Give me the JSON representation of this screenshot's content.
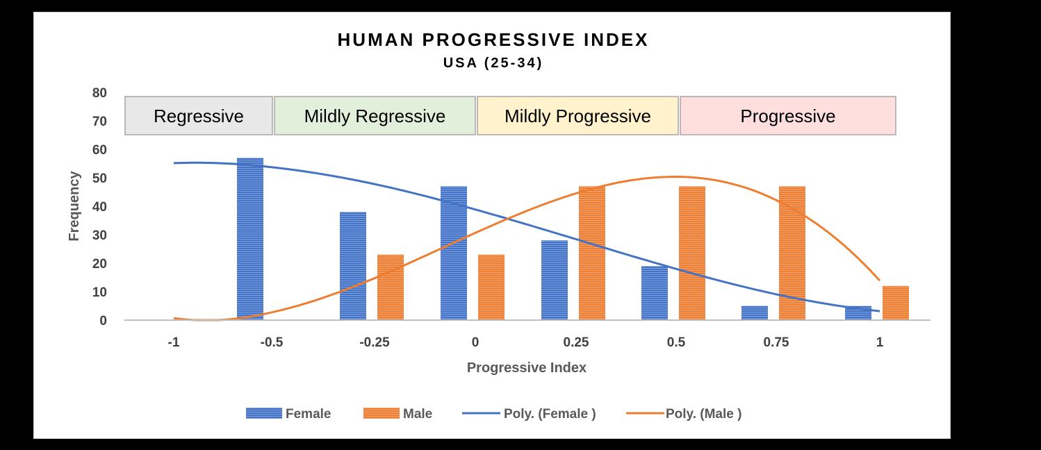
{
  "colors": {
    "female": "#4472C4",
    "male": "#ED7D31",
    "axis": "#BFBFBF",
    "region_borders": "#A6A6A6"
  },
  "chart_data": {
    "type": "bar",
    "title": "HUMAN PROGRESSIVE INDEX",
    "subtitle": "USA (25-34)",
    "xlabel": "Progressive Index",
    "ylabel": "Frequency",
    "x_ticks": [
      "-1",
      "-0.5",
      "-0.25",
      "0",
      "0.25",
      "0.5",
      "0.75",
      "1"
    ],
    "y_ticks": [
      0,
      10,
      20,
      30,
      40,
      50,
      60,
      70,
      80
    ],
    "ylim": [
      0,
      80
    ],
    "categories": [
      "-0.5",
      "-0.25",
      "0",
      "0.25",
      "0.5",
      "0.75",
      "1"
    ],
    "series": [
      {
        "name": "Female",
        "values": [
          57,
          38,
          47,
          28,
          19,
          5,
          5
        ]
      },
      {
        "name": "Male",
        "values": [
          0,
          23,
          23,
          47,
          47,
          47,
          12
        ]
      }
    ],
    "trendlines": [
      {
        "name": "Poly. (Female )",
        "type": "polynomial",
        "of": "Female"
      },
      {
        "name": "Poly. (Male )",
        "type": "polynomial",
        "of": "Male"
      }
    ],
    "regions": [
      {
        "label": "Regressive",
        "color": "#E8E8E8"
      },
      {
        "label": "Mildly Regressive",
        "color": "#E2EFDA"
      },
      {
        "label": "Mildly Progressive",
        "color": "#FFF2CC"
      },
      {
        "label": "Progressive",
        "color": "#FFDEDE"
      }
    ],
    "legend": {
      "position": "bottom",
      "items": [
        "Female",
        "Male",
        "Poly. (Female )",
        "Poly. (Male )"
      ]
    },
    "grid": false
  }
}
